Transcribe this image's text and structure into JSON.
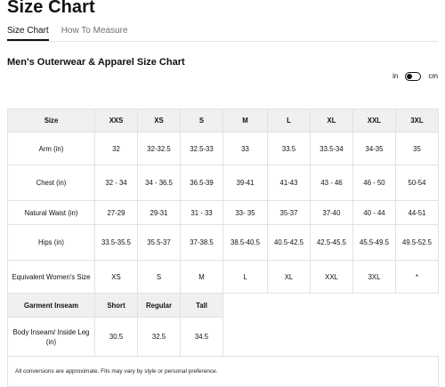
{
  "page": {
    "title": "Size Chart"
  },
  "tabs": [
    {
      "label": "Size Chart",
      "active": true
    },
    {
      "label": "How To Measure",
      "active": false
    }
  ],
  "chart": {
    "subtitle": "Men's Outerwear & Apparel Size Chart",
    "unit_toggle": {
      "left_label": "in",
      "right_label": "cm",
      "selected": "in"
    },
    "size_header": [
      "Size",
      "XXS",
      "XS",
      "S",
      "M",
      "L",
      "XL",
      "XXL",
      "3XL"
    ],
    "rows": [
      {
        "label": "Arm (in)",
        "values": [
          "32",
          "32-32.5",
          "32.5-33",
          "33",
          "33.5",
          "33.5-34",
          "34-35",
          "35"
        ]
      },
      {
        "label": "Chest (in)",
        "values": [
          "32 - 34",
          "34 - 36.5",
          "36.5-39",
          "39-41",
          "41-43",
          "43 - 46",
          "46 - 50",
          "50-54"
        ]
      },
      {
        "label": "Natural Waist (in)",
        "values": [
          "27-29",
          "29-31",
          "31 - 33",
          "33- 35",
          "35-37",
          "37-40",
          "40 - 44",
          "44-51"
        ]
      },
      {
        "label": "Hips (in)",
        "values": [
          "33.5-35.5",
          "35.5-37",
          "37-38.5",
          "38.5-40.5",
          "40.5-42.5",
          "42.5-45.5",
          "45.5-49.5",
          "49.5-52.5"
        ]
      },
      {
        "label": "Equivalent Women's Size",
        "values": [
          "XS",
          "S",
          "M",
          "L",
          "XL",
          "XXL",
          "3XL",
          "*"
        ]
      }
    ],
    "inseam_header": [
      "Garment Inseam",
      "Short",
      "Regular",
      "Tall"
    ],
    "inseam_row": {
      "label": "Body Inseam/ Inside Leg (in)",
      "values": [
        "30.5",
        "32.5",
        "34.5"
      ]
    },
    "footnote": "All conversions are approximate. Fits may vary by style or personal preference."
  }
}
